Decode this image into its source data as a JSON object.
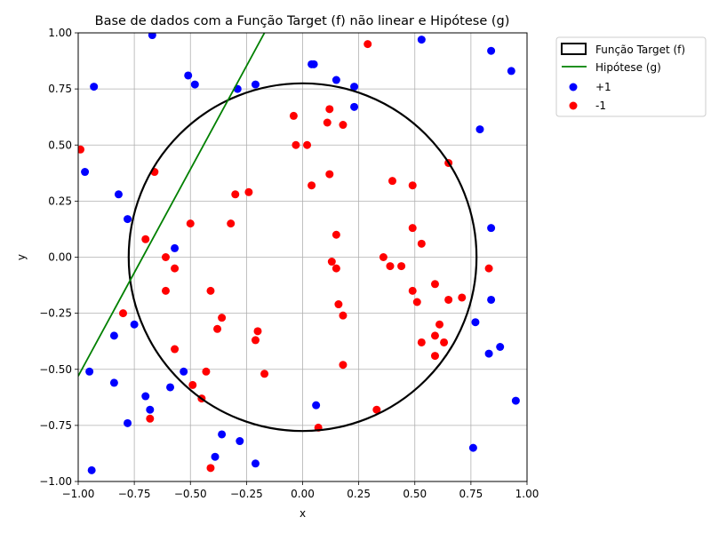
{
  "chart_data": {
    "type": "scatter",
    "title": "Base de dados com a Função Target (f) não linear e Hipótese (g)",
    "xlabel": "x",
    "ylabel": "y",
    "xlim": [
      -1.0,
      1.0
    ],
    "ylim": [
      -1.0,
      1.0
    ],
    "grid": true,
    "legend_placement": "outside-upper-right",
    "xticks": [
      "−1.00",
      "−0.75",
      "−0.50",
      "−0.25",
      "0.00",
      "0.25",
      "0.50",
      "0.75",
      "1.00"
    ],
    "yticks": [
      "−1.00",
      "−0.75",
      "−0.50",
      "−0.25",
      "0.00",
      "0.25",
      "0.50",
      "0.75",
      "1.00"
    ],
    "xtick_values": [
      -1.0,
      -0.75,
      -0.5,
      -0.25,
      0.0,
      0.25,
      0.5,
      0.75,
      1.0
    ],
    "ytick_values": [
      -1.0,
      -0.75,
      -0.5,
      -0.25,
      0.0,
      0.25,
      0.5,
      0.75,
      1.0
    ],
    "target_function": {
      "name": "Função Target (f)",
      "shape": "circle",
      "center": [
        0.0,
        0.0
      ],
      "radius": 0.775,
      "color": "#000000"
    },
    "hypothesis": {
      "name": "Hipótese (g)",
      "shape": "line",
      "points": [
        [
          -1.0,
          -0.53
        ],
        [
          -0.17,
          1.0
        ]
      ],
      "color": "#008000"
    },
    "series": [
      {
        "name": "+1",
        "color": "#0000ff",
        "points": [
          [
            -0.67,
            0.99
          ],
          [
            -0.93,
            0.76
          ],
          [
            -0.51,
            0.81
          ],
          [
            -0.48,
            0.77
          ],
          [
            -0.29,
            0.75
          ],
          [
            -0.21,
            0.77
          ],
          [
            0.04,
            0.86
          ],
          [
            0.05,
            0.86
          ],
          [
            0.15,
            0.79
          ],
          [
            0.23,
            0.76
          ],
          [
            0.23,
            0.67
          ],
          [
            0.53,
            0.97
          ],
          [
            0.84,
            0.92
          ],
          [
            0.93,
            0.83
          ],
          [
            0.79,
            0.57
          ],
          [
            -0.97,
            0.38
          ],
          [
            -0.82,
            0.28
          ],
          [
            -0.78,
            0.17
          ],
          [
            -0.57,
            0.04
          ],
          [
            0.84,
            0.13
          ],
          [
            -0.75,
            -0.3
          ],
          [
            -0.84,
            -0.35
          ],
          [
            -0.53,
            -0.51
          ],
          [
            -0.95,
            -0.51
          ],
          [
            -0.84,
            -0.56
          ],
          [
            -0.59,
            -0.58
          ],
          [
            -0.7,
            -0.62
          ],
          [
            -0.68,
            -0.68
          ],
          [
            -0.78,
            -0.74
          ],
          [
            0.06,
            -0.66
          ],
          [
            -0.36,
            -0.79
          ],
          [
            -0.28,
            -0.82
          ],
          [
            -0.39,
            -0.89
          ],
          [
            -0.21,
            -0.92
          ],
          [
            -0.94,
            -0.95
          ],
          [
            0.84,
            -0.19
          ],
          [
            0.77,
            -0.29
          ],
          [
            0.88,
            -0.4
          ],
          [
            0.83,
            -0.43
          ],
          [
            0.95,
            -0.64
          ],
          [
            0.76,
            -0.85
          ]
        ]
      },
      {
        "name": "-1",
        "color": "#ff0000",
        "points": [
          [
            -0.99,
            0.48
          ],
          [
            -0.66,
            0.38
          ],
          [
            -0.5,
            0.15
          ],
          [
            -0.32,
            0.15
          ],
          [
            -0.3,
            0.28
          ],
          [
            -0.24,
            0.29
          ],
          [
            -0.7,
            0.08
          ],
          [
            -0.61,
            0.0
          ],
          [
            -0.57,
            -0.05
          ],
          [
            -0.61,
            -0.15
          ],
          [
            -0.41,
            -0.15
          ],
          [
            -0.8,
            -0.25
          ],
          [
            -0.36,
            -0.27
          ],
          [
            -0.38,
            -0.32
          ],
          [
            -0.2,
            -0.33
          ],
          [
            -0.21,
            -0.37
          ],
          [
            -0.57,
            -0.41
          ],
          [
            -0.43,
            -0.51
          ],
          [
            -0.17,
            -0.52
          ],
          [
            -0.49,
            -0.57
          ],
          [
            -0.45,
            -0.63
          ],
          [
            -0.68,
            -0.72
          ],
          [
            -0.41,
            -0.94
          ],
          [
            -0.04,
            0.63
          ],
          [
            -0.03,
            0.5
          ],
          [
            0.02,
            0.5
          ],
          [
            0.11,
            0.6
          ],
          [
            0.12,
            0.66
          ],
          [
            0.18,
            0.59
          ],
          [
            0.12,
            0.37
          ],
          [
            0.04,
            0.32
          ],
          [
            0.29,
            0.95
          ],
          [
            0.15,
            0.1
          ],
          [
            0.13,
            -0.02
          ],
          [
            0.15,
            -0.05
          ],
          [
            0.16,
            -0.21
          ],
          [
            0.18,
            -0.26
          ],
          [
            0.18,
            -0.48
          ],
          [
            0.07,
            -0.76
          ],
          [
            0.33,
            -0.68
          ],
          [
            0.4,
            0.34
          ],
          [
            0.49,
            0.32
          ],
          [
            0.65,
            0.42
          ],
          [
            0.49,
            0.13
          ],
          [
            0.53,
            0.06
          ],
          [
            0.36,
            0.0
          ],
          [
            0.39,
            -0.04
          ],
          [
            0.44,
            -0.04
          ],
          [
            0.49,
            -0.15
          ],
          [
            0.51,
            -0.2
          ],
          [
            0.59,
            -0.12
          ],
          [
            0.65,
            -0.19
          ],
          [
            0.71,
            -0.18
          ],
          [
            0.61,
            -0.3
          ],
          [
            0.59,
            -0.35
          ],
          [
            0.53,
            -0.38
          ],
          [
            0.63,
            -0.38
          ],
          [
            0.59,
            -0.44
          ],
          [
            0.83,
            -0.05
          ]
        ]
      }
    ]
  }
}
